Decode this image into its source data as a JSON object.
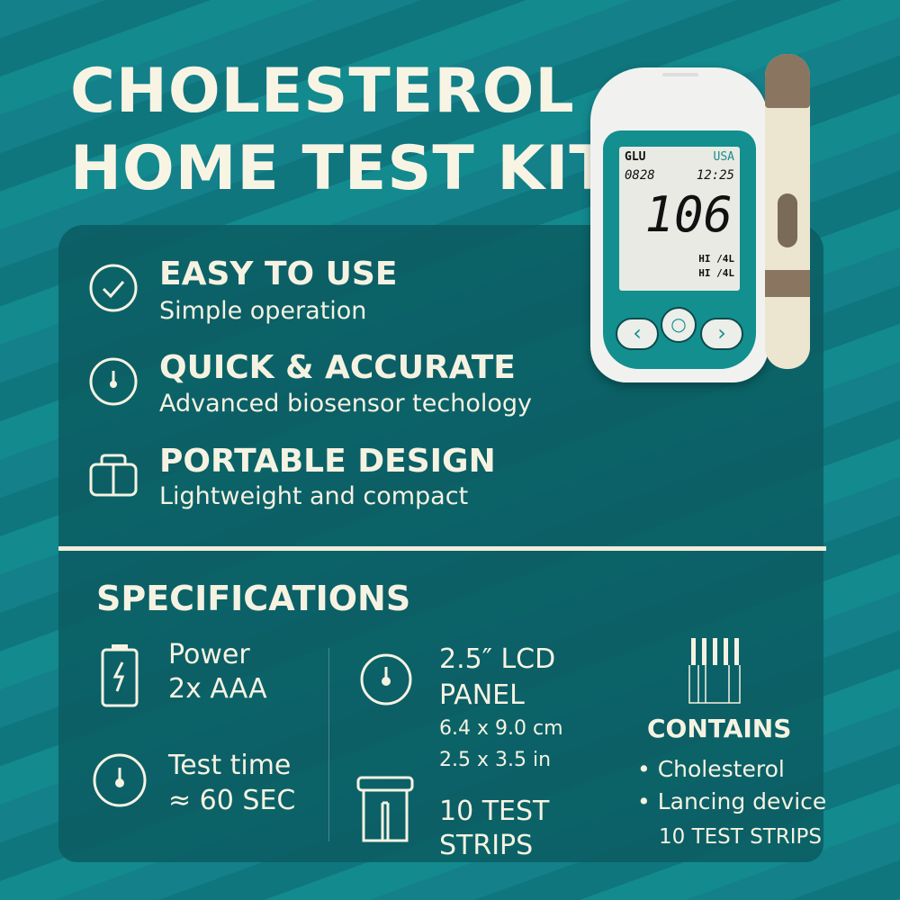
{
  "title": {
    "line1": "CHOLESTEROL",
    "line2": "HOME TEST KIT"
  },
  "device": {
    "lcd": {
      "mode": "GLU",
      "region": "USA",
      "date": "0828",
      "time": "12:25",
      "reading": "106",
      "unit1": "HI /4L",
      "unit2": "HI /4L"
    }
  },
  "features": [
    {
      "icon": "check-circle-icon",
      "title": "EASY TO USE",
      "subtitle": "Simple operation"
    },
    {
      "icon": "timer-icon",
      "title": "QUICK & ACCURATE",
      "subtitle": "Advanced biosensor techology"
    },
    {
      "icon": "box-icon",
      "title": "PORTABLE DESIGN",
      "subtitle": "Lightweight and compact"
    }
  ],
  "specs": {
    "heading": "SPECIFICATIONS",
    "power": {
      "label": "Power",
      "value": "2x AAA"
    },
    "test_time": {
      "label": "Test time",
      "value": "≈ 60 SEC"
    },
    "lcd": {
      "line1": "2.5″ LCD",
      "line2": "PANEL",
      "cm": "6.4 x 9.0 cm",
      "in": "2.5 x 3.5 in"
    },
    "strips": {
      "line1": "10 TEST",
      "line2": "STRIPS"
    },
    "contains": {
      "heading": "CONTAINS",
      "items": [
        "Cholesterol",
        "Lancing device"
      ],
      "extra": "10 TEST STRIPS"
    }
  },
  "colors": {
    "background": "#0f7a7f",
    "panel": "#0a5c60",
    "text": "#f6f2e2"
  }
}
